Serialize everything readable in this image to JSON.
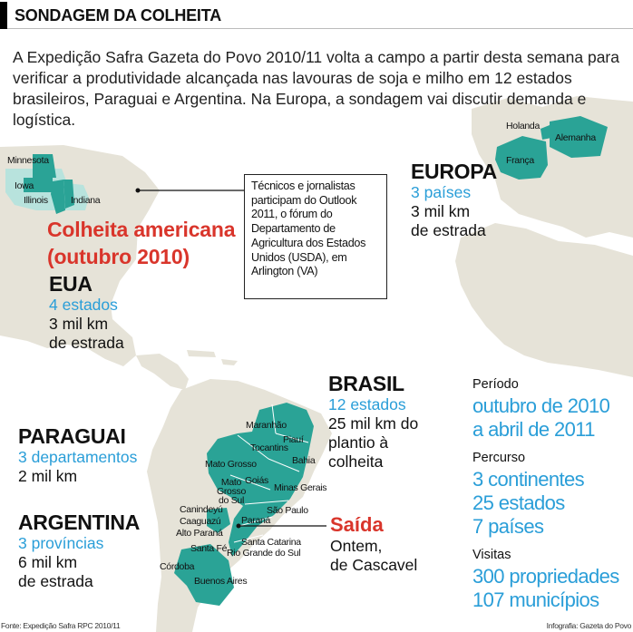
{
  "title": "SONDAGEM DA COLHEITA",
  "intro": "A Expedição Safra Gazeta do Povo 2010/11 volta a campo a partir desta semana para verificar a produtividade alcançada nas lavouras de soja e milho em 12 estados brasileiros, Paraguai e Argentina. Na Europa, a sondagem vai discutir demanda e logística.",
  "colors": {
    "land": "#e6e3d8",
    "visited": "#2aa396",
    "accent_blue": "#2a9ed8",
    "accent_red": "#d9352b"
  },
  "usa": {
    "labels": [
      "Minnesota",
      "Iowa",
      "Illinois",
      "Indiana"
    ],
    "highlight_line1": "Colheita americana",
    "highlight_line2": "(outubro 2010)",
    "name": "EUA",
    "count": "4 estados",
    "distance_line1": "3 mil km",
    "distance_line2": "de estrada"
  },
  "callout": "Técnicos e jornalistas participam do Outlook 2011, o fórum do Departamento de Agricultura dos Estados Unidos (USDA), em Arlington (VA)",
  "europe": {
    "labels": [
      "Holanda",
      "Alemanha",
      "França"
    ],
    "name": "EUROPA",
    "count": "3 países",
    "distance_line1": "3 mil km",
    "distance_line2": "de estrada"
  },
  "brasil": {
    "labels": [
      "Maranhão",
      "Piauí",
      "Tocantins",
      "Bahia",
      "Mato Grosso",
      "Goiás",
      "Minas Gerais",
      "São Paulo",
      "Paraná",
      "Santa Catarina",
      "Rio Grande do Sul"
    ],
    "ms_label_1": "Mato",
    "ms_label_2": "Grosso",
    "ms_label_3": "do Sul",
    "name": "BRASIL",
    "count": "12 estados",
    "distance": "25 mil km do plantio à colheita"
  },
  "paraguai": {
    "labels": [
      "Canindeyú",
      "Caaguazú",
      "Alto Paraná"
    ],
    "name": "PARAGUAI",
    "count": "3 departamentos",
    "distance": "2 mil km"
  },
  "argentina": {
    "labels": [
      "Santa Fé",
      "Córdoba",
      "Buenos Aires"
    ],
    "name": "ARGENTINA",
    "count": "3 províncias",
    "distance_line1": "6 mil km",
    "distance_line2": "de estrada"
  },
  "saida": {
    "title": "Saída",
    "detail_line1": "Ontem,",
    "detail_line2": "de Cascavel"
  },
  "facts": {
    "periodo_label": "Período",
    "periodo_line1": "outubro de 2010",
    "periodo_line2": "a abril de 2011",
    "percurso_label": "Percurso",
    "percurso_line1": "3 continentes",
    "percurso_line2": "25 estados",
    "percurso_line3": "7 países",
    "visitas_label": "Visitas",
    "visitas_line1": "300 propriedades",
    "visitas_line2": "107 municípios"
  },
  "footer": {
    "source": "Fonte: Expedição Safra RPC 2010/11",
    "credit": "Infografia: Gazeta do Povo"
  }
}
